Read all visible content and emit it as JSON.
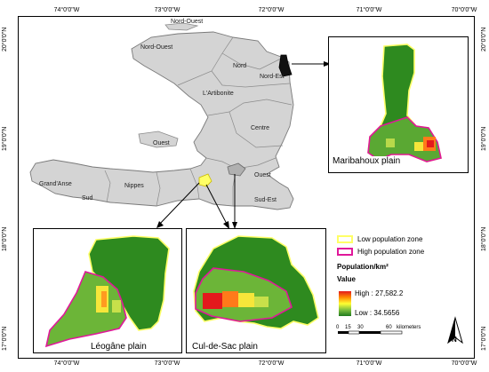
{
  "axes": {
    "longitudes": [
      "74°0'0\"W",
      "73°0'0\"W",
      "72°0'0\"W",
      "71°0'0\"W",
      "70°0'0\"W"
    ],
    "latitudes": [
      "20°0'0\"N",
      "19°0'0\"N",
      "18°0'0\"N",
      "17°0'0\"N"
    ]
  },
  "regions": {
    "nord_ouest_top": "Nord-Ouest",
    "nord_ouest": "Nord-Ouest",
    "nord": "Nord",
    "nord_est": "Nord-Est",
    "artibonite": "L'Artibonite",
    "centre": "Centre",
    "ouest_island": "Ouest",
    "ouest": "Ouest",
    "grandanse": "Grand'Anse",
    "nippes": "Nippes",
    "sud": "Sud",
    "sud_est": "Sud-Est"
  },
  "insets": {
    "maribahoux": "Maribahoux plain",
    "leogane": "Léogâne plain",
    "culdesac": "Cul-de-Sac  plain"
  },
  "legend": {
    "low_zone": "Low population zone",
    "high_zone": "High population zone",
    "density_title": "Population/km²",
    "value_label": "Value",
    "high": "High : 27,582.2",
    "low": "Low : 34.5656",
    "low_color": "#ffff66",
    "high_color": "#e0189a"
  },
  "scale": {
    "ticks": [
      "0",
      "15",
      "30",
      "60"
    ],
    "unit": "kilometers"
  },
  "north": "N"
}
